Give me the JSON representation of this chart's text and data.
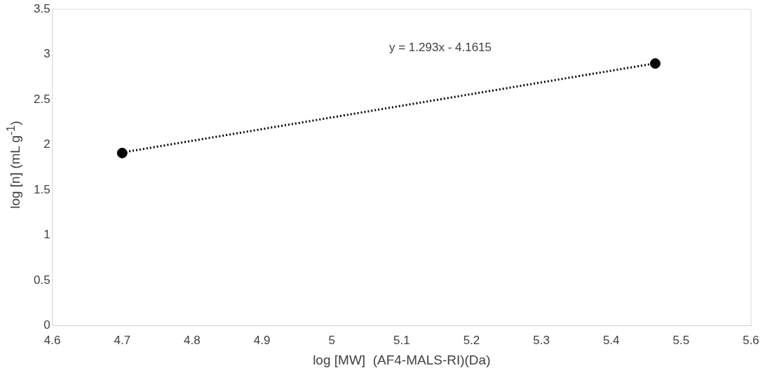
{
  "chart_data": {
    "type": "scatter",
    "xlabel": "log [MW]  (AF4-MALS-RI)(Da)",
    "ylabel": "log [n] (mL g$^{-1}$)",
    "x": [
      4.7,
      5.463
    ],
    "series": [
      {
        "type": "line",
        "color": "#000000",
        "values": [
          1.916,
          2.902
        ],
        "line_style": "dotted",
        "marker": "none"
      },
      {
        "type": "scatter",
        "color": "#000000",
        "values": [
          1.91,
          2.9
        ],
        "marker": "circle"
      }
    ],
    "annotations": [
      "y = 1.293x - 4.1615"
    ],
    "xlim": [
      4.6,
      5.6
    ],
    "xticks": [
      4.6,
      4.7,
      4.8,
      4.9,
      5,
      5.1,
      5.2,
      5.3,
      5.4,
      5.5,
      5.6
    ],
    "ylim": [
      0,
      3.5
    ],
    "yticks": [
      0,
      0.5,
      1,
      1.5,
      2,
      2.5,
      3,
      3.5
    ],
    "grid": false,
    "legend": false
  }
}
